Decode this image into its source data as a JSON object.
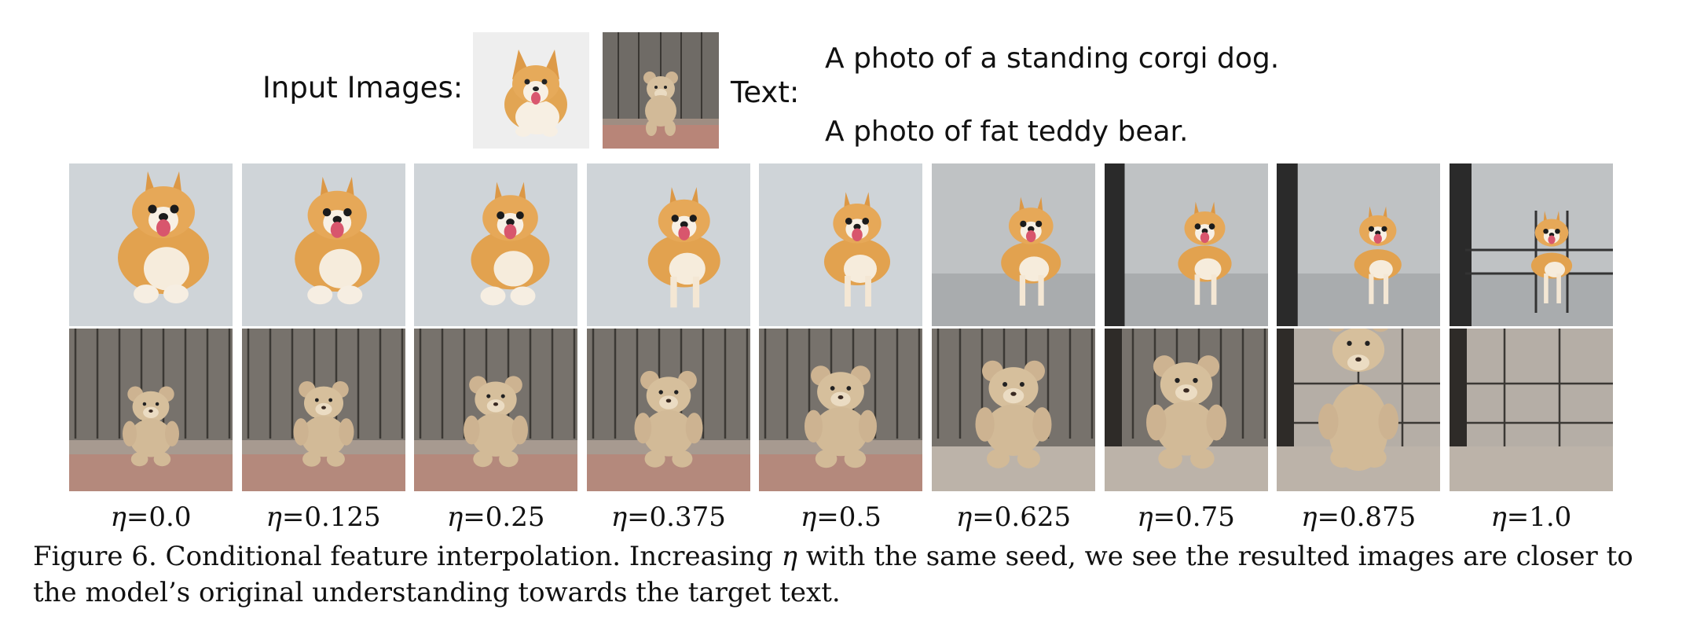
{
  "header": {
    "input_label": "Input Images:",
    "text_label": "Text:",
    "prompts": [
      "A photo of a standing corgi dog.",
      "A photo of fat teddy bear."
    ]
  },
  "eta_symbol": "η",
  "eta_values": [
    "=0.0",
    "=0.125",
    "=0.25",
    "=0.375",
    "=0.5",
    "=0.625",
    "=0.75",
    "=0.875",
    "=1.0"
  ],
  "caption": {
    "part1": "Figure 6. Conditional feature interpolation. Increasing ",
    "symbol": "η",
    "part2": " with the same seed, we see the resulted images are closer to the model’s original understanding towards the target text."
  },
  "colors": {
    "corgi_fur": "#e0a050",
    "corgi_cream": "#f6ecdc",
    "bear_fur": "#d8c2a0",
    "wood": "#7a7570",
    "studio_bg": "#c9ced2"
  }
}
